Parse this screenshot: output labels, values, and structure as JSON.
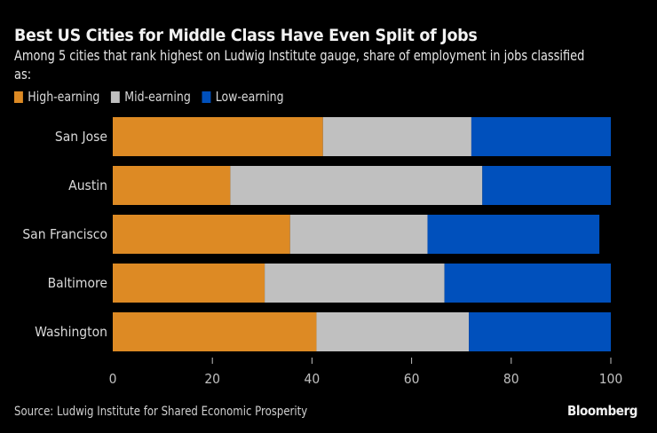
{
  "chart_data": {
    "type": "bar",
    "orientation": "horizontal",
    "stacked": true,
    "title": "Best US Cities for Middle Class Have Even Split of Jobs",
    "subtitle": "Among 5 cities that rank highest on Ludwig Institute gauge, share of employment in jobs classified as:",
    "categories": [
      "San Jose",
      "Austin",
      "San Francisco",
      "Baltimore",
      "Washington"
    ],
    "series": [
      {
        "name": "High-earning",
        "color": "#DD8A24",
        "values": [
          42.2,
          23.6,
          35.6,
          30.5,
          40.9
        ]
      },
      {
        "name": "Mid-earning",
        "color": "#C0C0C0",
        "values": [
          29.8,
          50.6,
          27.6,
          36.1,
          30.6
        ]
      },
      {
        "name": "Low-earning",
        "color": "#0050BC",
        "values": [
          28.0,
          25.8,
          34.5,
          33.4,
          28.5
        ]
      }
    ],
    "xlim": [
      0,
      100
    ],
    "xticks": [
      0,
      20,
      40,
      60,
      80,
      100
    ],
    "xlabel": "",
    "ylabel": "",
    "grid": false,
    "legend_position": "top-left"
  },
  "footer": {
    "source": "Source: Ludwig Institute for Shared Economic Prosperity",
    "brand": "Bloomberg"
  }
}
